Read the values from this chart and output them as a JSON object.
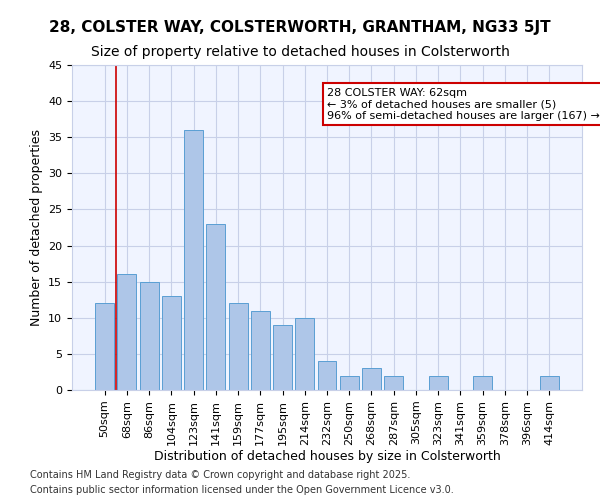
{
  "title_line1": "28, COLSTER WAY, COLSTERWORTH, GRANTHAM, NG33 5JT",
  "title_line2": "Size of property relative to detached houses in Colsterworth",
  "xlabel": "Distribution of detached houses by size in Colsterworth",
  "ylabel": "Number of detached properties",
  "categories": [
    "50sqm",
    "68sqm",
    "86sqm",
    "104sqm",
    "123sqm",
    "141sqm",
    "159sqm",
    "177sqm",
    "195sqm",
    "214sqm",
    "232sqm",
    "250sqm",
    "268sqm",
    "287sqm",
    "305sqm",
    "323sqm",
    "341sqm",
    "359sqm",
    "378sqm",
    "396sqm",
    "414sqm"
  ],
  "values": [
    12,
    16,
    15,
    13,
    36,
    23,
    12,
    11,
    9,
    10,
    4,
    2,
    3,
    2,
    0,
    2,
    0,
    2,
    0,
    0,
    2
  ],
  "bar_color": "#aec6e8",
  "bar_edge_color": "#5a9fd4",
  "ylim": [
    0,
    45
  ],
  "yticks": [
    0,
    5,
    10,
    15,
    20,
    25,
    30,
    35,
    40,
    45
  ],
  "background_color": "#ffffff",
  "plot_bg_color": "#f0f4ff",
  "grid_color": "#c8d0e8",
  "red_line_x": 0,
  "annotation_text": "28 COLSTER WAY: 62sqm\n← 3% of detached houses are smaller (5)\n96% of semi-detached houses are larger (167) →",
  "annotation_box_color": "#ffffff",
  "annotation_border_color": "#cc0000",
  "footer_line1": "Contains HM Land Registry data © Crown copyright and database right 2025.",
  "footer_line2": "Contains public sector information licensed under the Open Government Licence v3.0.",
  "title_fontsize": 11,
  "subtitle_fontsize": 10,
  "axis_label_fontsize": 9,
  "tick_fontsize": 8,
  "annotation_fontsize": 8,
  "footer_fontsize": 7
}
